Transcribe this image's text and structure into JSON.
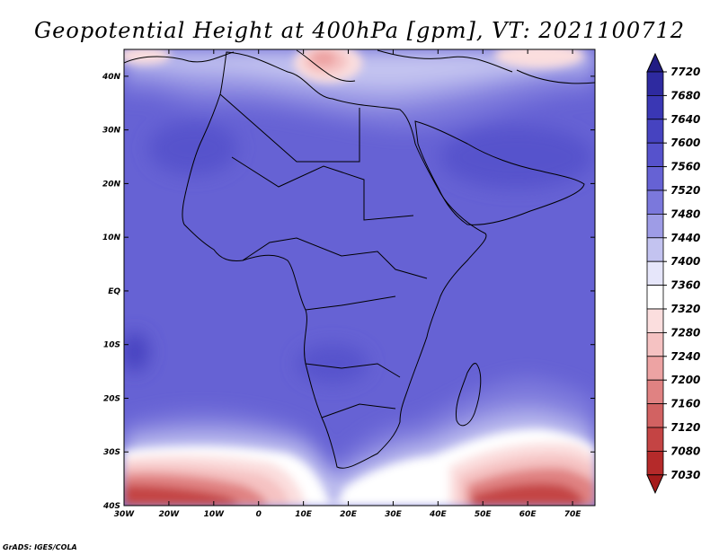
{
  "title": "Geopotential Height at 400hPa [gpm], VT: 2021100712",
  "credit": "GrADS: IGES/COLA",
  "map": {
    "lon_labels": [
      "30W",
      "20W",
      "10W",
      "0",
      "10E",
      "20E",
      "30E",
      "40E",
      "50E",
      "60E",
      "70E"
    ],
    "lat_labels": [
      "40N",
      "30N",
      "20N",
      "10N",
      "EQ",
      "10S",
      "20S",
      "30S",
      "40S"
    ]
  },
  "colorbar": {
    "labels": [
      "7720",
      "7680",
      "7640",
      "7600",
      "7560",
      "7520",
      "7480",
      "7440",
      "7400",
      "7360",
      "7320",
      "7280",
      "7240",
      "7200",
      "7160",
      "7120",
      "7080",
      "7030"
    ],
    "colors": [
      "#221c84",
      "#2e2aa0",
      "#3a37b4",
      "#4643c0",
      "#5652cc",
      "#6662d4",
      "#7b78dc",
      "#9e9ce6",
      "#c3c3f0",
      "#e6e6fa",
      "#ffffff",
      "#fbdede",
      "#f5c2c2",
      "#eda3a3",
      "#e08282",
      "#d26262",
      "#c44444",
      "#b52a2a",
      "#a51c1c"
    ]
  },
  "field": {
    "variable": "Geopotential Height",
    "level": "400hPa",
    "units": "gpm",
    "valid_time": "2021100712"
  }
}
